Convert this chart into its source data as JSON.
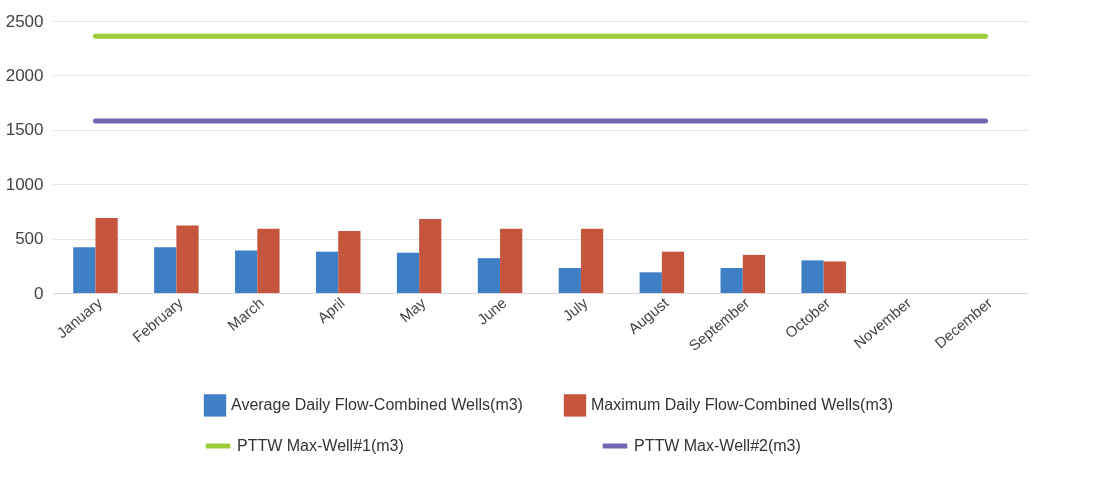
{
  "chart_data": {
    "type": "bar",
    "categories": [
      "January",
      "February",
      "March",
      "April",
      "May",
      "June",
      "July",
      "August",
      "September",
      "October",
      "November",
      "December"
    ],
    "series": [
      {
        "name": "Average Daily Flow-Combined Wells(m3)",
        "color": "#3f7fc6",
        "values": [
          420,
          420,
          390,
          380,
          370,
          320,
          230,
          190,
          230,
          300,
          null,
          null
        ]
      },
      {
        "name": "Maximum Daily Flow-Combined Wells(m3)",
        "color": "#c5563d",
        "values": [
          690,
          620,
          590,
          570,
          680,
          590,
          590,
          380,
          350,
          290,
          null,
          null
        ]
      },
      {
        "name": "PTTW Max-Well#1(m3)",
        "type": "line",
        "color": "#9ccc3c",
        "values": [
          2360,
          2360,
          2360,
          2360,
          2360,
          2360,
          2360,
          2360,
          2360,
          2360,
          2360,
          2360
        ]
      },
      {
        "name": "PTTW Max-Well#2(m3)",
        "type": "line",
        "color": "#7565b0",
        "values": [
          1580,
          1580,
          1580,
          1580,
          1580,
          1580,
          1580,
          1580,
          1580,
          1580,
          1580,
          1580
        ]
      }
    ],
    "ylim": [
      0,
      2500
    ],
    "yticks": [
      0,
      500,
      1000,
      1500,
      2000,
      2500
    ],
    "grid": "y",
    "legend": "bottom"
  }
}
